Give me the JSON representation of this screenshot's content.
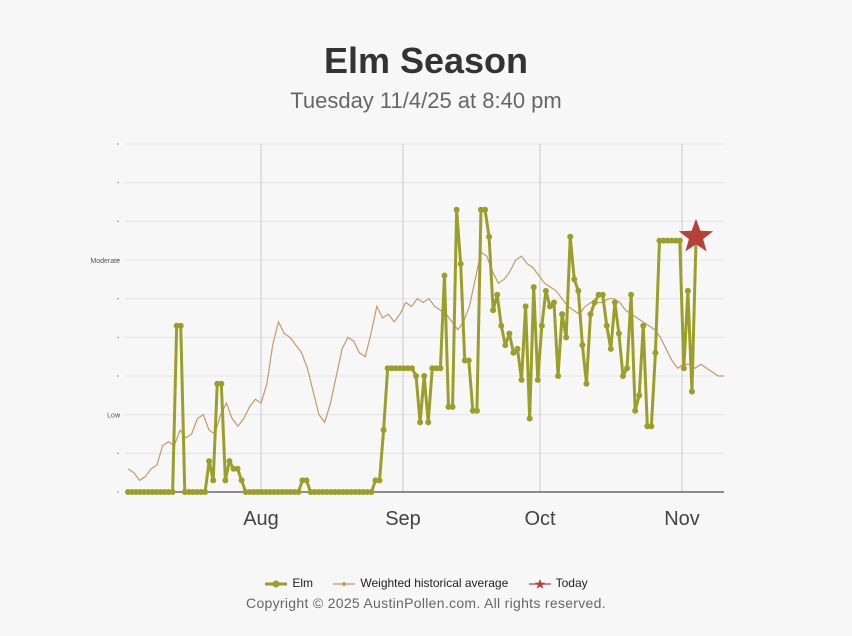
{
  "title": "Elm Season",
  "subtitle": "Tuesday 11/4/25 at 8:40 pm",
  "copyright": "Copyright © 2025 AustinPollen.com.  All rights reserved.",
  "colors": {
    "elm": "#9b9f2a",
    "average": "#c49a6c",
    "today": "#b5413b",
    "grid": "#e4e4e4",
    "month_line": "#c8c8c8"
  },
  "chart_data": {
    "type": "line",
    "x_ticks": [
      "Aug",
      "Sep",
      "Oct",
      "Nov"
    ],
    "y_ticks": [
      "Low",
      "Moderate"
    ],
    "legend": [
      "Elm",
      "Weighted historical average",
      "Today"
    ],
    "legend_position": "bottom",
    "series": [
      {
        "name": "Elm",
        "values": [
          0,
          0,
          0,
          0,
          0,
          0,
          0,
          0,
          0,
          0,
          0,
          0,
          4.3,
          4.3,
          0,
          0,
          0,
          0,
          0,
          0,
          0.8,
          0.3,
          2.8,
          2.8,
          0.3,
          0.8,
          0.6,
          0.6,
          0.3,
          0,
          0,
          0,
          0,
          0,
          0,
          0,
          0,
          0,
          0,
          0,
          0,
          0,
          0,
          0.3,
          0.3,
          0,
          0,
          0,
          0,
          0,
          0,
          0,
          0,
          0,
          0,
          0,
          0,
          0,
          0,
          0,
          0,
          0.3,
          0.3,
          1.6,
          3.2,
          3.2,
          3.2,
          3.2,
          3.2,
          3.2,
          3.2,
          3.0,
          1.8,
          3.0,
          1.8,
          3.2,
          3.2,
          3.2,
          5.6,
          2.2,
          2.2,
          7.3,
          5.9,
          3.4,
          3.4,
          2.1,
          2.1,
          7.3,
          7.3,
          6.6,
          4.7,
          5.1,
          4.3,
          3.8,
          4.1,
          3.6,
          3.7,
          2.9,
          4.8,
          1.9,
          5.3,
          2.9,
          4.3,
          5.2,
          4.8,
          4.9,
          3.0,
          4.6,
          4.0,
          6.6,
          5.5,
          5.2,
          3.8,
          2.8,
          4.6,
          4.9,
          5.1,
          5.1,
          4.3,
          3.7,
          4.9,
          4.1,
          3.0,
          3.2,
          5.1,
          2.1,
          2.5,
          4.3,
          1.7,
          1.7,
          3.6,
          6.5,
          6.5,
          6.5,
          6.5,
          6.5,
          6.5,
          3.2,
          5.2,
          2.6,
          6.5
        ]
      },
      {
        "name": "Weighted historical average",
        "values": [
          0.6,
          0.5,
          0.3,
          0.4,
          0.6,
          0.7,
          1.2,
          1.3,
          1.2,
          1.6,
          1.4,
          1.5,
          1.9,
          2.0,
          1.6,
          1.5,
          2.0,
          2.3,
          1.9,
          1.7,
          1.9,
          2.2,
          2.4,
          2.3,
          2.8,
          3.8,
          4.4,
          4.1,
          4.0,
          3.8,
          3.6,
          3.2,
          2.6,
          2.0,
          1.8,
          2.3,
          3.0,
          3.7,
          4.0,
          3.9,
          3.6,
          3.5,
          4.1,
          4.8,
          4.5,
          4.6,
          4.4,
          4.6,
          4.9,
          4.8,
          5.0,
          4.9,
          5.0,
          4.8,
          4.7,
          4.6,
          4.4,
          4.2,
          4.4,
          4.8,
          5.5,
          6.2,
          6.1,
          5.7,
          5.4,
          5.5,
          5.7,
          6.0,
          6.1,
          5.9,
          5.8,
          5.6,
          5.4,
          5.3,
          5.2,
          5.0,
          4.8,
          4.7,
          4.6,
          4.8,
          4.9,
          4.9,
          4.9,
          5.0,
          5.0,
          4.9,
          4.7,
          4.6,
          4.5,
          4.4,
          4.3,
          4.2,
          4.0,
          3.7,
          3.4,
          3.2,
          3.3,
          3.3,
          3.2,
          3.3,
          3.2,
          3.1,
          3.0,
          3.0
        ]
      }
    ],
    "today": {
      "label": "Today",
      "value": 6.6
    }
  }
}
